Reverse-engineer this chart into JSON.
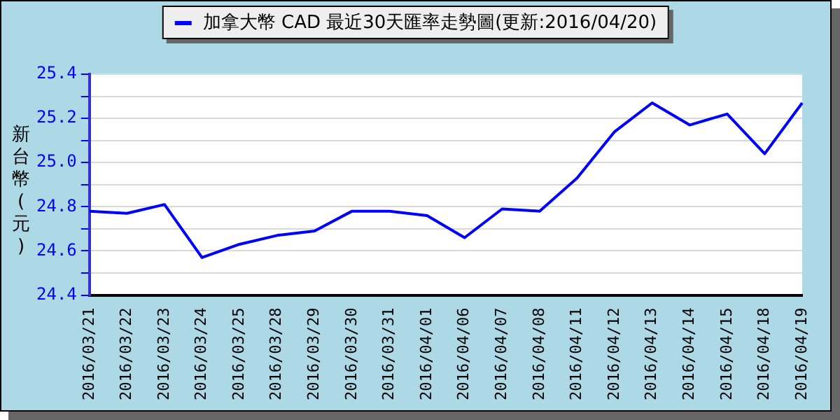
{
  "chart_data": {
    "type": "line",
    "ylabel": "新台幣(元)",
    "categories": [
      "2016/03/21",
      "2016/03/22",
      "2016/03/23",
      "2016/03/24",
      "2016/03/25",
      "2016/03/28",
      "2016/03/29",
      "2016/03/30",
      "2016/03/31",
      "2016/04/01",
      "2016/04/06",
      "2016/04/07",
      "2016/04/08",
      "2016/04/11",
      "2016/04/12",
      "2016/04/13",
      "2016/04/14",
      "2016/04/15",
      "2016/04/18",
      "2016/04/19"
    ],
    "series": [
      {
        "name": "加拿大幣 CAD 最近30天匯率走勢圖(更新:2016/04/20)",
        "color": "#0000ff",
        "values": [
          24.78,
          24.77,
          24.81,
          24.57,
          24.63,
          24.67,
          24.69,
          24.78,
          24.78,
          24.76,
          24.66,
          24.79,
          24.78,
          24.93,
          25.14,
          25.27,
          25.17,
          25.22,
          25.04,
          25.27
        ]
      }
    ],
    "ylim": [
      24.4,
      25.4
    ],
    "yticks": [
      24.4,
      {
        "value": 24.5,
        "label": null
      },
      24.6,
      {
        "value": 24.7,
        "label": null
      },
      24.8,
      {
        "value": 24.9,
        "label": null
      },
      {
        "value": 25.0,
        "label": "25.0"
      },
      {
        "value": 25.1,
        "label": null
      },
      25.2,
      {
        "value": 25.3,
        "label": null
      },
      25.4
    ],
    "grid": "y",
    "legend": "top",
    "marker": "none",
    "line_style": "solid"
  }
}
